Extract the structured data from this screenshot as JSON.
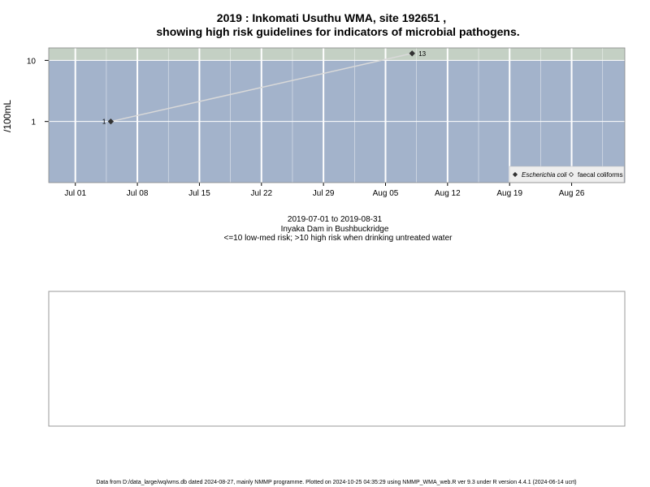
{
  "chart_data": {
    "type": "line",
    "title_line1": "2019 : Inkomati Usuthu WMA, site 192651 ,",
    "title_line2": "showing high risk guidelines for indicators of microbial pathogens.",
    "ylabel": "/100mL",
    "y_scale": "log",
    "yticks": [
      {
        "label": "1",
        "value": 1
      },
      {
        "label": "10",
        "value": 10
      }
    ],
    "ylim": [
      0.1,
      16
    ],
    "xlim": [
      "2019-06-28",
      "2019-09-01"
    ],
    "xticks": [
      {
        "label": "Jul 01",
        "date": "2019-07-01"
      },
      {
        "label": "Jul 08",
        "date": "2019-07-08"
      },
      {
        "label": "Jul 15",
        "date": "2019-07-15"
      },
      {
        "label": "Jul 22",
        "date": "2019-07-22"
      },
      {
        "label": "Jul 29",
        "date": "2019-07-29"
      },
      {
        "label": "Aug 05",
        "date": "2019-08-05"
      },
      {
        "label": "Aug 12",
        "date": "2019-08-12"
      },
      {
        "label": "Aug 19",
        "date": "2019-08-19"
      },
      {
        "label": "Aug 26",
        "date": "2019-08-26"
      }
    ],
    "high_risk_threshold": 10,
    "series": [
      {
        "name": "Escherichia coli",
        "marker": "filled-diamond",
        "points": [
          {
            "date": "2019-07-05",
            "value": 1,
            "label": "1"
          },
          {
            "date": "2019-08-08",
            "value": 13,
            "label": "13"
          }
        ]
      },
      {
        "name": "faecal coliforms",
        "marker": "open-diamond",
        "points": []
      }
    ],
    "legend_position": "bottom-right",
    "caption": [
      "2019-07-01 to 2019-08-31",
      "Inyaka Dam in Bushbuckridge",
      "<=10 low-med risk; >10 high risk when drinking untreated water"
    ],
    "colors": {
      "plot_bg": "#a3b3cb",
      "high_risk_band": "#c4d0c4",
      "grid": "#ffffff",
      "series_line": "#d9d9d9",
      "marker": "#333333"
    }
  },
  "footer": "Data from D:/data_large/wq/wms.db dated 2024-08-27, mainly NMMP programme. Plotted on 2024-10-25 04:35:29 using NMMP_WMA_web.R ver 9.3 under R version 4.4.1 (2024-06-14 ucrt)"
}
